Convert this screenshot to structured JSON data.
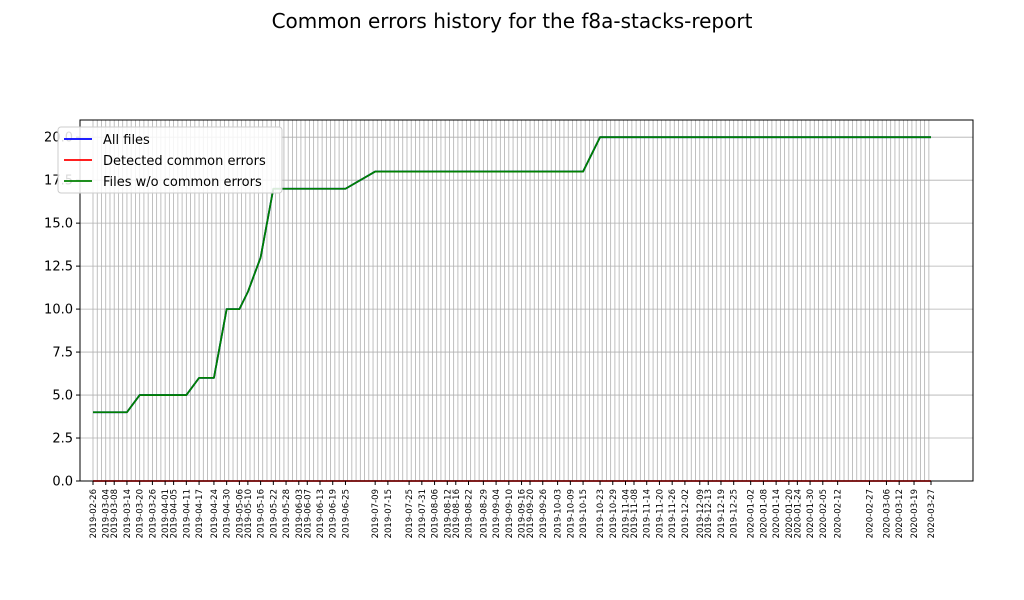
{
  "chart_data": {
    "type": "line",
    "title": "Common errors history for the f8a-stacks-report",
    "xlabel": "",
    "ylabel": "",
    "ylim": [
      0,
      21
    ],
    "yticks": [
      "0.0",
      "2.5",
      "5.0",
      "7.5",
      "10.0",
      "12.5",
      "15.0",
      "17.5",
      "20.0"
    ],
    "grid": true,
    "legend_position": "top-left",
    "colors": {
      "all_files": "#0000ff",
      "detected": "#ff0000",
      "without_errors": "#008000"
    },
    "x": [
      "2019-02-26",
      "2019-03-04",
      "2019-03-08",
      "2019-03-14",
      "2019-03-20",
      "2019-03-26",
      "2019-04-01",
      "2019-04-05",
      "2019-04-11",
      "2019-04-17",
      "2019-04-24",
      "2019-04-30",
      "2019-05-06",
      "2019-05-10",
      "2019-05-16",
      "2019-05-22",
      "2019-05-28",
      "2019-06-03",
      "2019-06-07",
      "2019-06-13",
      "2019-06-19",
      "2019-06-25",
      "2019-07-09",
      "2019-07-15",
      "2019-07-25",
      "2019-07-31",
      "2019-08-06",
      "2019-08-12",
      "2019-08-16",
      "2019-08-22",
      "2019-08-29",
      "2019-09-04",
      "2019-09-10",
      "2019-09-16",
      "2019-09-20",
      "2019-09-26",
      "2019-10-03",
      "2019-10-09",
      "2019-10-15",
      "2019-10-23",
      "2019-10-29",
      "2019-11-04",
      "2019-11-08",
      "2019-11-14",
      "2019-11-20",
      "2019-11-26",
      "2019-12-02",
      "2019-12-09",
      "2019-12-13",
      "2019-12-19",
      "2019-12-25",
      "2020-01-02",
      "2020-01-08",
      "2020-01-14",
      "2020-01-20",
      "2020-01-24",
      "2020-01-30",
      "2020-02-05",
      "2020-02-12",
      "2020-02-27",
      "2020-03-06",
      "2020-03-12",
      "2020-03-19",
      "2020-03-27"
    ],
    "series": [
      {
        "name": "All files",
        "values": [
          4,
          4,
          4,
          4,
          5,
          5,
          5,
          5,
          5,
          6,
          6,
          10,
          10,
          11,
          13,
          17,
          17,
          17,
          17,
          17,
          17,
          17,
          18,
          18,
          18,
          18,
          18,
          18,
          18,
          18,
          18,
          18,
          18,
          18,
          18,
          18,
          18,
          18,
          18,
          20,
          20,
          20,
          20,
          20,
          20,
          20,
          20,
          20,
          20,
          20,
          20,
          20,
          20,
          20,
          20,
          20,
          20,
          20,
          20,
          20,
          20,
          20,
          20,
          20
        ]
      },
      {
        "name": "Detected common errors",
        "values": [
          0,
          0,
          0,
          0,
          0,
          0,
          0,
          0,
          0,
          0,
          0,
          0,
          0,
          0,
          0,
          0,
          0,
          0,
          0,
          0,
          0,
          0,
          0,
          0,
          0,
          0,
          0,
          0,
          0,
          0,
          0,
          0,
          0,
          0,
          0,
          0,
          0,
          0,
          0,
          0,
          0,
          0,
          0,
          0,
          0,
          0,
          0,
          0,
          0,
          0,
          0,
          0,
          0,
          0,
          0,
          0,
          0,
          0,
          0,
          0,
          0,
          0,
          0,
          0
        ]
      },
      {
        "name": "Files w/o common errors",
        "values": [
          4,
          4,
          4,
          4,
          5,
          5,
          5,
          5,
          5,
          6,
          6,
          10,
          10,
          11,
          13,
          17,
          17,
          17,
          17,
          17,
          17,
          17,
          18,
          18,
          18,
          18,
          18,
          18,
          18,
          18,
          18,
          18,
          18,
          18,
          18,
          18,
          18,
          18,
          18,
          20,
          20,
          20,
          20,
          20,
          20,
          20,
          20,
          20,
          20,
          20,
          20,
          20,
          20,
          20,
          20,
          20,
          20,
          20,
          20,
          20,
          20,
          20,
          20,
          20
        ]
      }
    ]
  }
}
